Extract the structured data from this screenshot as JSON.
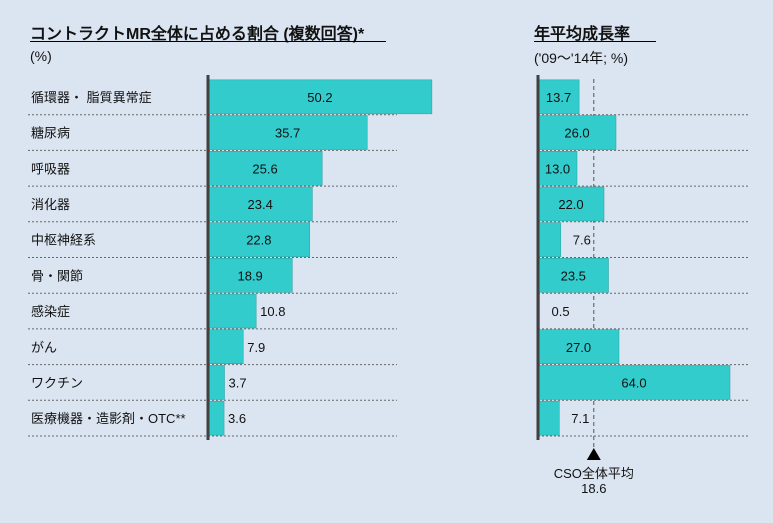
{
  "left_title": "コントラクトMR全体に占める割合 (複数回答)*",
  "left_unit": "(%)",
  "right_title": "年平均成長率",
  "right_unit": "('09～'14年; %)",
  "cso_label": "CSO全体平均",
  "cso_value_label": "18.6",
  "colors": {
    "bar": "#33cccc",
    "background": "#dbe5f1",
    "axis": "#404040"
  },
  "chart_data": [
    {
      "type": "bar",
      "orientation": "horizontal",
      "title": "コントラクトMR全体に占める割合 (複数回答)*",
      "unit": "(%)",
      "categories": [
        "循環器・ 脂質異常症",
        "糖尿病",
        "呼吸器",
        "消化器",
        "中枢神経系",
        "骨・関節",
        "感染症",
        "がん",
        "ワクチン",
        "医療機器・造影剤・OTC**"
      ],
      "values": [
        50.2,
        35.7,
        25.6,
        23.4,
        22.8,
        18.9,
        10.8,
        7.9,
        3.7,
        3.6
      ],
      "value_labels": [
        "50.2",
        "35.7",
        "25.6",
        "23.4",
        "22.8",
        "18.9",
        "10.8",
        "7.9",
        "3.7",
        "3.6"
      ]
    },
    {
      "type": "bar",
      "orientation": "horizontal",
      "title": "年平均成長率",
      "unit": "('09～'14年; %)",
      "categories": [
        "循環器・ 脂質異常症",
        "糖尿病",
        "呼吸器",
        "消化器",
        "中枢神経系",
        "骨・関節",
        "感染症",
        "がん",
        "ワクチン",
        "医療機器・造影剤・OTC**"
      ],
      "values": [
        13.7,
        26.0,
        13.0,
        22.0,
        7.6,
        23.5,
        0.5,
        27.0,
        64.0,
        7.1
      ],
      "value_labels": [
        "13.7",
        "26.0",
        "13.0",
        "22.0",
        "7.6",
        "23.5",
        "0.5",
        "27.0",
        "64.0",
        "7.1"
      ],
      "reference_line": {
        "label": "CSO全体平均",
        "value": 18.6,
        "style": "dashed"
      }
    }
  ]
}
